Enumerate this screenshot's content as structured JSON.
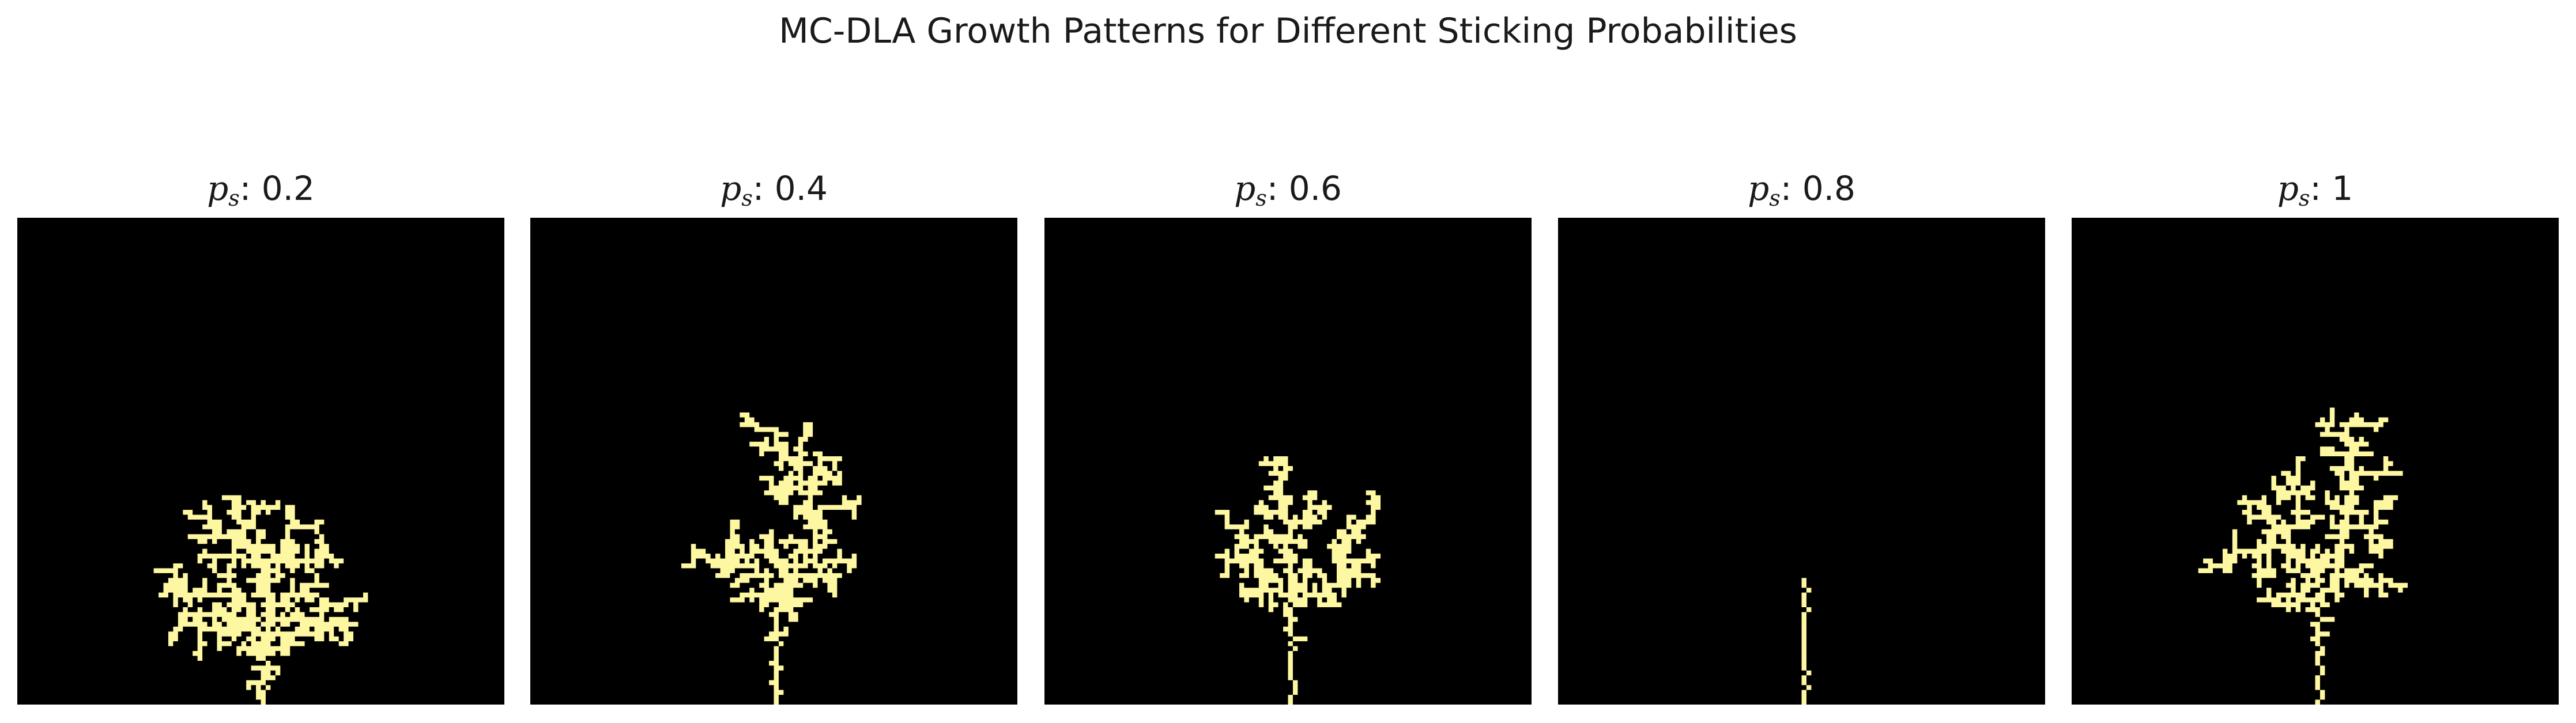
{
  "title": "MC-DLA Growth Patterns for Different Sticking Probabilities",
  "chart_data": {
    "type": "heatmap",
    "title": "MC-DLA Growth Patterns for Different Sticking Probabilities",
    "colors": {
      "background": "#000000",
      "aggregate": "#fdf7a2"
    },
    "panels": [
      {
        "title_symbol": "p",
        "title_subscript": "s",
        "title_value": ": 0.2",
        "sticking_probability": 0.2
      },
      {
        "title_symbol": "p",
        "title_subscript": "s",
        "title_value": ": 0.4",
        "sticking_probability": 0.4
      },
      {
        "title_symbol": "p",
        "title_subscript": "s",
        "title_value": ": 0.6",
        "sticking_probability": 0.6
      },
      {
        "title_symbol": "p",
        "title_subscript": "s",
        "title_value": ": 0.8",
        "sticking_probability": 0.8
      },
      {
        "title_symbol": "p",
        "title_subscript": "s",
        "title_value": ": 1",
        "sticking_probability": 1
      }
    ]
  }
}
